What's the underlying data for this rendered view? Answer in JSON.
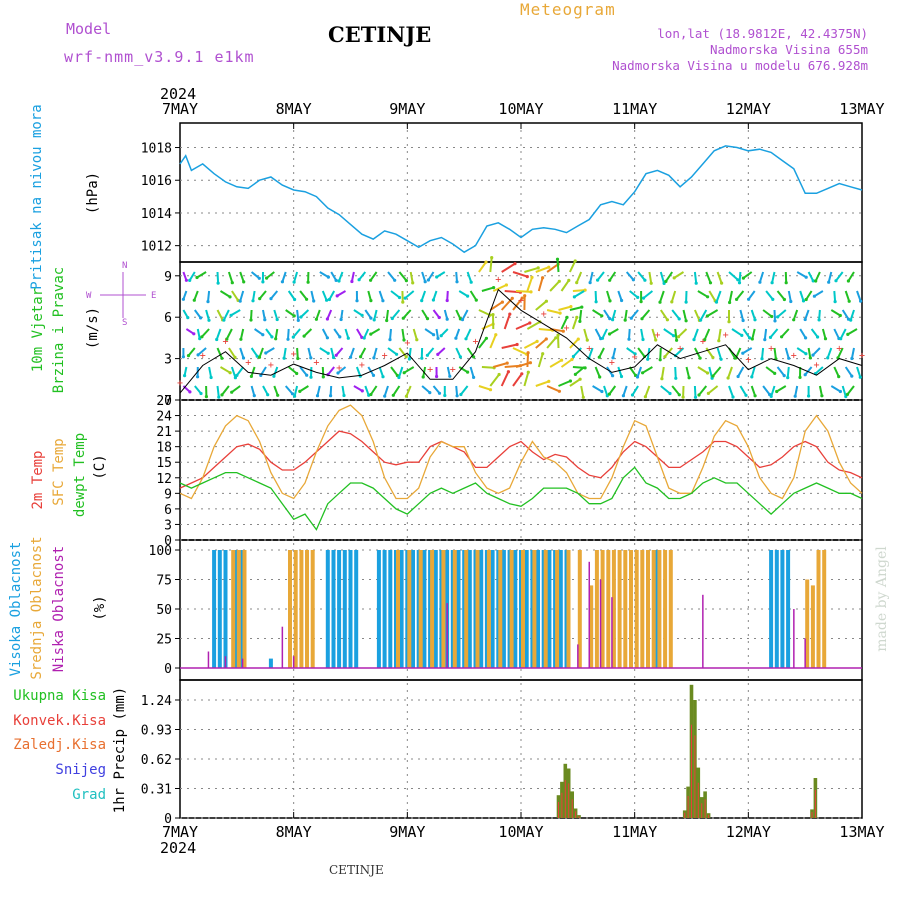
{
  "header": {
    "model_label": "Model",
    "model_name": "wrf-nmm_v3.9.1  e1km",
    "station": "CETINJE",
    "meteogram": "Meteogram",
    "lonlat": "lon,lat (18.9812E, 42.4375N)",
    "altitude": "Nadmorska Visina 655m",
    "model_altitude": "Nadmorska Visina u modelu 676.928m",
    "footer_station": "CETINJE",
    "credit": "made by Angel"
  },
  "colors": {
    "pressure": "#1aa0e0",
    "temp2m": "#e8403a",
    "sfc": "#e8a838",
    "dewpt": "#22c022",
    "high_cloud": "#1aa0e0",
    "mid_cloud": "#e8a838",
    "low_cloud": "#b020b0",
    "total_precip": "#6a8a20",
    "conv_precip": "#e8403a",
    "purple": "#b050d0"
  },
  "chart_data": [
    {
      "type": "line",
      "name": "pressure",
      "ylabel_lines": [
        "Pritisak na nivou mora",
        "(hPa)"
      ],
      "ylim": [
        1011,
        1019.5
      ],
      "yticks": [
        1012,
        1014,
        1016,
        1018
      ],
      "x": [
        0,
        0.05,
        0.1,
        0.2,
        0.3,
        0.4,
        0.5,
        0.6,
        0.7,
        0.8,
        0.9,
        1.0,
        1.1,
        1.2,
        1.3,
        1.4,
        1.5,
        1.6,
        1.7,
        1.8,
        1.9,
        2.0,
        2.1,
        2.2,
        2.3,
        2.4,
        2.5,
        2.6,
        2.7,
        2.8,
        2.9,
        3.0,
        3.1,
        3.2,
        3.3,
        3.4,
        3.5,
        3.6,
        3.7,
        3.8,
        3.9,
        4.0,
        4.1,
        4.2,
        4.3,
        4.4,
        4.5,
        4.6,
        4.7,
        4.8,
        4.9,
        5.0,
        5.1,
        5.2,
        5.3,
        5.4,
        5.5,
        5.6,
        5.7,
        5.8,
        5.9,
        6.0
      ],
      "values": [
        1017.0,
        1017.5,
        1016.6,
        1017.0,
        1016.4,
        1015.9,
        1015.6,
        1015.5,
        1016.0,
        1016.2,
        1015.7,
        1015.4,
        1015.3,
        1015.0,
        1014.3,
        1013.9,
        1013.3,
        1012.7,
        1012.4,
        1012.9,
        1012.7,
        1012.3,
        1011.9,
        1012.3,
        1012.5,
        1012.1,
        1011.6,
        1012.0,
        1013.2,
        1013.4,
        1013.0,
        1012.5,
        1013.0,
        1013.1,
        1013.0,
        1012.8,
        1013.2,
        1013.6,
        1014.5,
        1014.7,
        1014.5,
        1015.3,
        1016.4,
        1016.6,
        1016.3,
        1015.6,
        1016.2,
        1017.0,
        1017.8,
        1018.1,
        1018.0,
        1017.8,
        1017.9,
        1017.7,
        1017.2,
        1016.7,
        1015.2,
        1015.2,
        1015.5,
        1015.8,
        1015.6,
        1015.4
      ]
    },
    {
      "type": "line",
      "name": "wind",
      "ylabel_lines": [
        "10m Vjetar",
        "Brzina i Pravac",
        "(m/s)"
      ],
      "direction_key": [
        "N",
        "E",
        "W",
        "S"
      ],
      "ylim": [
        0,
        10
      ],
      "yticks": [
        0,
        3,
        6,
        9
      ],
      "x": [
        0,
        0.2,
        0.4,
        0.6,
        0.8,
        1.0,
        1.2,
        1.4,
        1.6,
        1.8,
        2.0,
        2.2,
        2.4,
        2.6,
        2.8,
        3.0,
        3.2,
        3.4,
        3.6,
        3.8,
        4.0,
        4.2,
        4.4,
        4.6,
        4.8,
        5.0,
        5.2,
        5.4,
        5.6,
        5.8,
        6.0
      ],
      "values": [
        0.5,
        2.5,
        3.5,
        2.0,
        1.8,
        2.6,
        2.0,
        1.6,
        1.8,
        2.5,
        3.4,
        1.5,
        1.5,
        3.5,
        8.0,
        6.5,
        5.5,
        4.5,
        3.0,
        2.0,
        2.4,
        4.0,
        3.0,
        3.5,
        4.0,
        2.2,
        3.0,
        2.5,
        1.8,
        3.0,
        2.5
      ]
    },
    {
      "type": "line",
      "name": "temperature",
      "ylabel_lines": [
        "2m Temp",
        "SFC Temp",
        "dewpt Temp",
        "(C)"
      ],
      "ylim": [
        0,
        27
      ],
      "yticks": [
        0,
        3,
        6,
        9,
        12,
        15,
        18,
        21,
        24,
        27
      ],
      "x": [
        0,
        0.1,
        0.2,
        0.3,
        0.4,
        0.5,
        0.6,
        0.7,
        0.8,
        0.9,
        1.0,
        1.1,
        1.2,
        1.3,
        1.4,
        1.5,
        1.6,
        1.7,
        1.8,
        1.9,
        2.0,
        2.1,
        2.2,
        2.3,
        2.4,
        2.5,
        2.6,
        2.7,
        2.8,
        2.9,
        3.0,
        3.1,
        3.2,
        3.3,
        3.4,
        3.5,
        3.6,
        3.7,
        3.8,
        3.9,
        4.0,
        4.1,
        4.2,
        4.3,
        4.4,
        4.5,
        4.6,
        4.7,
        4.8,
        4.9,
        5.0,
        5.1,
        5.2,
        5.3,
        5.4,
        5.5,
        5.6,
        5.7,
        5.8,
        5.9,
        6.0
      ],
      "series": [
        {
          "name": "2m Temp",
          "color": "#e8403a",
          "values": [
            10,
            11,
            12,
            14,
            16,
            18,
            18.5,
            17.5,
            15,
            13.5,
            13.5,
            15,
            17,
            19,
            21,
            20.5,
            19,
            17,
            15,
            14.5,
            15,
            15,
            18,
            19,
            18,
            17,
            14,
            14,
            16,
            18,
            19,
            17,
            15.5,
            16.5,
            16,
            14,
            12.5,
            12,
            14,
            17,
            19,
            18,
            16,
            14,
            14,
            15.5,
            17,
            19,
            19,
            18,
            16,
            14,
            14.5,
            16,
            18,
            19,
            18,
            15,
            13.5,
            13,
            12
          ]
        },
        {
          "name": "SFC Temp",
          "color": "#e8a838",
          "values": [
            9,
            8,
            12,
            18,
            22,
            24,
            23,
            19,
            13,
            9,
            8,
            11,
            17,
            22,
            25,
            26,
            24,
            19,
            12,
            8,
            8,
            10,
            16,
            19,
            18,
            18,
            13,
            10,
            9,
            10,
            15,
            19,
            16,
            15,
            13,
            9,
            8,
            8,
            12,
            18,
            23,
            22,
            16,
            10,
            9,
            9,
            14,
            20,
            23,
            22,
            18,
            12,
            9,
            8,
            12,
            21,
            24,
            21,
            15,
            11,
            9
          ]
        },
        {
          "name": "dewpt Temp",
          "color": "#22c022",
          "values": [
            11,
            10,
            11,
            12,
            13,
            13,
            12,
            11,
            10,
            7,
            4,
            5,
            2,
            7,
            9,
            11,
            11,
            10,
            8,
            6,
            5,
            7,
            9,
            10,
            9,
            10,
            11,
            9,
            8,
            7,
            6.5,
            8,
            10,
            10,
            10,
            9,
            7,
            7,
            8,
            12,
            14,
            11,
            10,
            8,
            8,
            9,
            11,
            12,
            11,
            11,
            9,
            7,
            5,
            7,
            9,
            10,
            11,
            10,
            9,
            9,
            8
          ]
        }
      ]
    },
    {
      "type": "bar",
      "name": "cloud",
      "ylabel_lines": [
        "Visoka Oblacnost",
        "Srednja Oblacnost",
        "Niska Oblacnost",
        "(%)"
      ],
      "ylim": [
        0,
        100
      ],
      "yticks": [
        0,
        25,
        50,
        75,
        100
      ],
      "series": [
        {
          "name": "Visoka Oblacnost",
          "color": "#1aa0e0",
          "x": [
            0.3,
            0.35,
            0.4,
            0.5,
            0.55,
            0.8,
            1.3,
            1.35,
            1.4,
            1.45,
            1.5,
            1.55,
            1.75,
            1.8,
            1.85,
            1.9,
            1.95,
            2.0,
            2.05,
            2.1,
            2.15,
            2.2,
            2.25,
            2.3,
            2.35,
            2.4,
            2.45,
            2.5,
            2.55,
            2.6,
            2.65,
            2.7,
            2.75,
            2.8,
            2.85,
            2.9,
            2.95,
            3.0,
            3.05,
            3.1,
            3.15,
            3.2,
            3.25,
            3.3,
            3.35,
            3.4,
            4.2,
            5.2,
            5.25,
            5.3,
            5.35
          ],
          "values": [
            100,
            100,
            100,
            100,
            100,
            8,
            100,
            100,
            100,
            100,
            100,
            100,
            100,
            100,
            100,
            100,
            100,
            100,
            100,
            100,
            100,
            100,
            100,
            100,
            100,
            100,
            100,
            100,
            100,
            100,
            100,
            100,
            100,
            100,
            100,
            100,
            100,
            100,
            100,
            100,
            100,
            100,
            100,
            100,
            100,
            100,
            100,
            100,
            100,
            100,
            100
          ]
        },
        {
          "name": "Srednja Oblacnost",
          "color": "#e8a838",
          "x": [
            0.45,
            0.5,
            0.55,
            0.95,
            1.0,
            1.05,
            1.1,
            1.15,
            1.9,
            2.0,
            2.1,
            2.2,
            2.3,
            2.4,
            2.5,
            2.6,
            2.7,
            2.8,
            2.9,
            3.0,
            3.1,
            3.2,
            3.3,
            3.4,
            3.5,
            3.6,
            3.65,
            3.7,
            3.75,
            3.8,
            3.85,
            3.9,
            3.95,
            4.0,
            4.05,
            4.1,
            4.15,
            4.2,
            4.25,
            4.3,
            5.5,
            5.55,
            5.6,
            5.65
          ],
          "values": [
            100,
            100,
            100,
            100,
            100,
            100,
            100,
            100,
            100,
            100,
            100,
            100,
            100,
            100,
            100,
            100,
            100,
            100,
            100,
            100,
            100,
            100,
            100,
            100,
            100,
            70,
            100,
            100,
            100,
            100,
            100,
            100,
            100,
            100,
            100,
            100,
            100,
            100,
            100,
            100,
            75,
            70,
            100,
            100
          ]
        },
        {
          "name": "Niska Oblacnost",
          "color": "#b020b0",
          "x": [
            0.25,
            0.4,
            0.55,
            0.9,
            1.0,
            2.35,
            3.5,
            3.6,
            3.7,
            3.8,
            4.6,
            5.4,
            5.5
          ],
          "values": [
            14,
            10,
            8,
            35,
            10,
            55,
            20,
            90,
            75,
            60,
            62,
            50,
            25
          ]
        }
      ]
    },
    {
      "type": "bar",
      "name": "precip",
      "ylabel_lines": [
        "1hr Precip (mm)"
      ],
      "legend": [
        "Ukupna Kisa",
        "Konvek.Kisa",
        "Zaledj.Kisa",
        "Snijeg",
        "Grad"
      ],
      "legend_colors": [
        "#22c022",
        "#e8403a",
        "#e87030",
        "#4040e0",
        "#20c0c0"
      ],
      "ylim": [
        0,
        1.45
      ],
      "yticks": [
        0,
        0.31,
        0.62,
        0.93,
        1.24
      ],
      "x": [
        3.33,
        3.36,
        3.39,
        3.42,
        3.45,
        3.48,
        3.51,
        4.44,
        4.47,
        4.5,
        4.53,
        4.56,
        4.59,
        4.62,
        4.65,
        5.56,
        5.59
      ],
      "values": [
        0.24,
        0.38,
        0.57,
        0.52,
        0.28,
        0.1,
        0.03,
        0.08,
        0.33,
        1.4,
        1.24,
        0.53,
        0.22,
        0.28,
        0.05,
        0.09,
        0.42
      ]
    }
  ],
  "axis": {
    "year": "2024",
    "dates": [
      "7MAY",
      "8MAY",
      "9MAY",
      "10MAY",
      "11MAY",
      "12MAY",
      "13MAY"
    ]
  }
}
